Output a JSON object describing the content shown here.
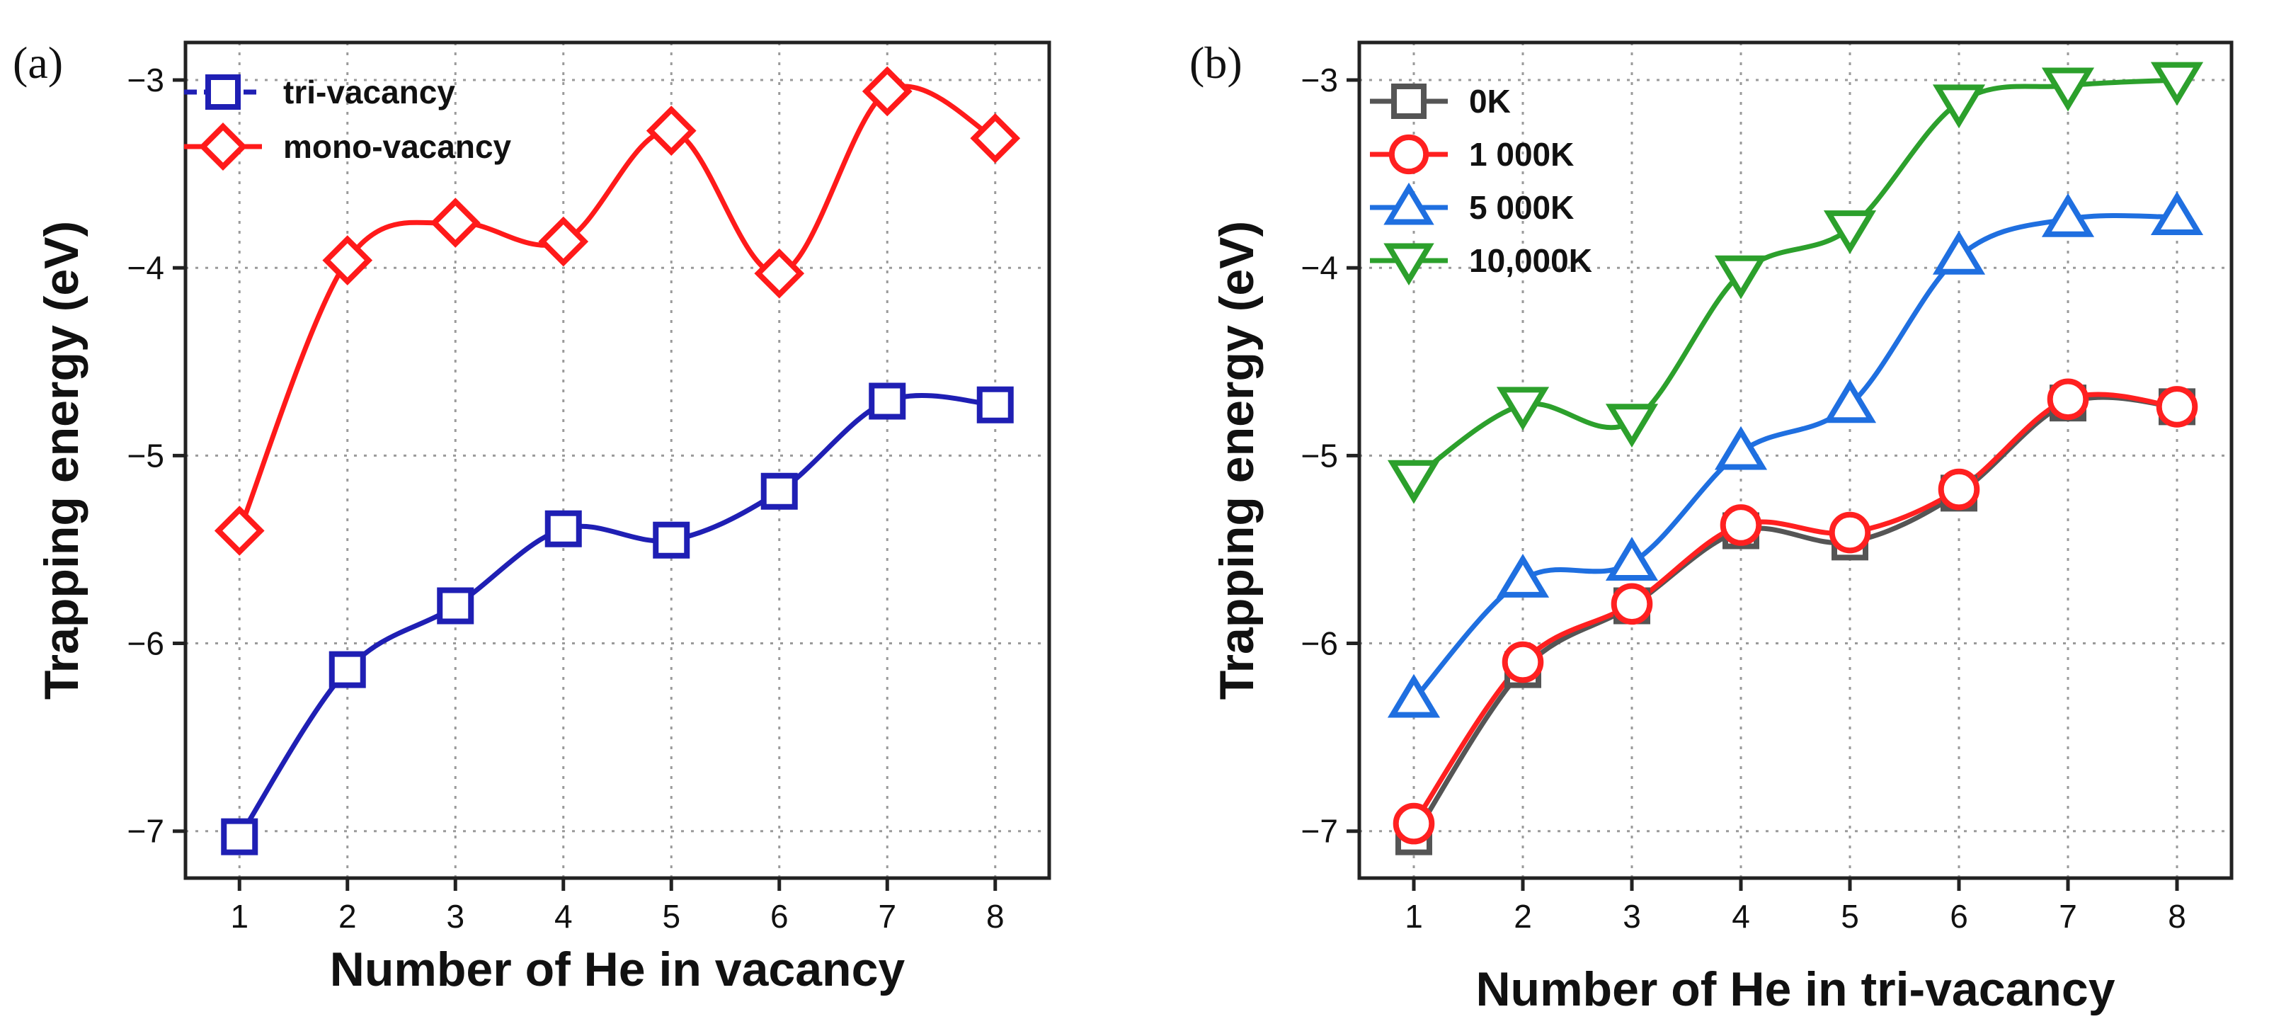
{
  "chart_data": [
    {
      "type": "line",
      "panel_label": "(a)",
      "title": "",
      "xlabel": "Number of He in vacancy",
      "ylabel": "Trapping energy (eV)",
      "x": [
        1,
        2,
        3,
        4,
        5,
        6,
        7,
        8
      ],
      "xlim": [
        0.5,
        8.5
      ],
      "ylim": [
        -7.25,
        -2.8
      ],
      "xticks": [
        1,
        2,
        3,
        4,
        5,
        6,
        7,
        8
      ],
      "yticks": [
        -7,
        -6,
        -5,
        -4,
        -3
      ],
      "ytick_labels": [
        "−7",
        "−6",
        "−5",
        "−4",
        "−3"
      ],
      "grid": true,
      "legend_position": "top-left",
      "series": [
        {
          "name": "tri-vacancy",
          "color": "#1f1fb4",
          "marker": "square",
          "dashed_legend": true,
          "values": [
            -7.03,
            -6.14,
            -5.8,
            -5.39,
            -5.45,
            -5.19,
            -4.71,
            -4.73
          ]
        },
        {
          "name": "mono-vacancy",
          "color": "#ff1a1a",
          "marker": "diamond",
          "dashed_legend": false,
          "values": [
            -5.4,
            -3.96,
            -3.76,
            -3.86,
            -3.27,
            -4.03,
            -3.06,
            -3.31
          ]
        }
      ]
    },
    {
      "type": "line",
      "panel_label": "(b)",
      "title": "",
      "xlabel": "Number of He in tri-vacancy",
      "ylabel": "Trapping energy (eV)",
      "x": [
        1,
        2,
        3,
        4,
        5,
        6,
        7,
        8
      ],
      "xlim": [
        0.5,
        8.5
      ],
      "ylim": [
        -7.25,
        -2.8
      ],
      "xticks": [
        1,
        2,
        3,
        4,
        5,
        6,
        7,
        8
      ],
      "yticks": [
        -7,
        -6,
        -5,
        -4,
        -3
      ],
      "ytick_labels": [
        "−7",
        "−6",
        "−5",
        "−4",
        "−3"
      ],
      "grid": true,
      "legend_position": "top-left",
      "series": [
        {
          "name": "0K",
          "color": "#555555",
          "marker": "square",
          "dashed_legend": false,
          "values": [
            -7.03,
            -6.14,
            -5.8,
            -5.4,
            -5.46,
            -5.2,
            -4.72,
            -4.74
          ]
        },
        {
          "name": "1 000K",
          "color": "#ff2020",
          "marker": "circle",
          "dashed_legend": false,
          "values": [
            -6.96,
            -6.1,
            -5.79,
            -5.37,
            -5.41,
            -5.18,
            -4.7,
            -4.74
          ]
        },
        {
          "name": "5 000K",
          "color": "#1f6fe0",
          "marker": "triangle-up",
          "dashed_legend": false,
          "values": [
            -6.3,
            -5.66,
            -5.57,
            -4.98,
            -4.73,
            -3.94,
            -3.74,
            -3.73
          ]
        },
        {
          "name": "10,000K",
          "color": "#2ca02c",
          "marker": "triangle-down",
          "dashed_legend": false,
          "values": [
            -5.12,
            -4.73,
            -4.82,
            -4.03,
            -3.79,
            -3.12,
            -3.03,
            -3.0
          ]
        }
      ]
    }
  ]
}
